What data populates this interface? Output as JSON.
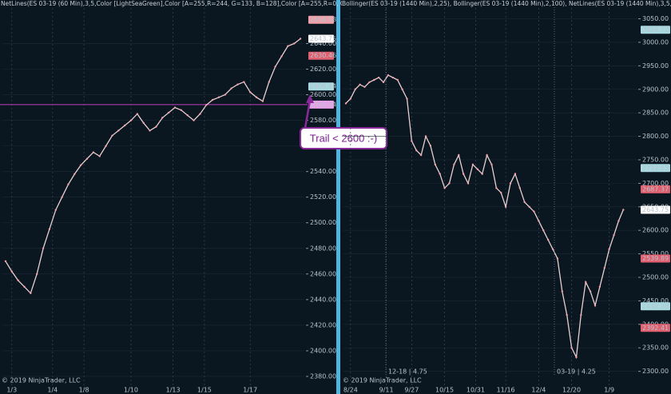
{
  "chart_data": [
    {
      "type": "line",
      "title": "NetLines(ES 03-19 (60 Min),3,5,Color [LightSeaGreen],Color [A=255,R=244, G=133, B=128],Color [A=255,R=0, G=131,",
      "values": [
        2470,
        2462,
        2455,
        2450,
        2445,
        2460,
        2480,
        2495,
        2510,
        2520,
        2530,
        2538,
        2545,
        2550,
        2555,
        2552,
        2560,
        2568,
        2572,
        2576,
        2580,
        2585,
        2578,
        2572,
        2575,
        2582,
        2586,
        2590,
        2588,
        2584,
        2580,
        2585,
        2592,
        2596,
        2598,
        2600,
        2605,
        2608,
        2610,
        2602,
        2598,
        2595,
        2610,
        2622,
        2630,
        2638,
        2640,
        2643.75
      ],
      "color": "#e8d0d0",
      "ylim": [
        2370,
        2674
      ],
      "yticks": [
        {
          "value": 2380,
          "label": "2380.00"
        },
        {
          "value": 2400,
          "label": "2400.00"
        },
        {
          "value": 2420,
          "label": "2420.00"
        },
        {
          "value": 2440,
          "label": "2440.00"
        },
        {
          "value": 2460,
          "label": "2460.00"
        },
        {
          "value": 2480,
          "label": "2480.00"
        },
        {
          "value": 2500,
          "label": "2500.00"
        },
        {
          "value": 2520,
          "label": "2520.00"
        },
        {
          "value": 2540,
          "label": "2540.00"
        },
        {
          "value": 2560,
          "label": "2560.00"
        },
        {
          "value": 2580,
          "label": "2580.00"
        },
        {
          "value": 2600,
          "label": "2600.00"
        },
        {
          "value": 2620,
          "label": "2620.00"
        },
        {
          "value": 2640,
          "label": "2640.00"
        }
      ],
      "xlim": [
        -0.5,
        47.5
      ],
      "xticks": [
        {
          "value": 1,
          "label": "1/3"
        },
        {
          "value": 7.5,
          "label": "1/4"
        },
        {
          "value": 12.5,
          "label": "1/8"
        },
        {
          "value": 20,
          "label": "1/10"
        },
        {
          "value": 26.7,
          "label": "1/13"
        },
        {
          "value": 31.7,
          "label": "1/15"
        },
        {
          "value": 39,
          "label": "1/17"
        }
      ],
      "hline": {
        "value": 2592.34,
        "color": "#c040c0"
      },
      "price_labels": [
        {
          "value": 2658.58,
          "color": "#f0a0a8"
        },
        {
          "value": 2643.75,
          "color": "#ffffff"
        },
        {
          "value": 2630.46,
          "color": "#e06070"
        },
        {
          "value": 2606.44,
          "color": "#a8d8e0"
        },
        {
          "value": 2592.34,
          "color": "#e8a0e8"
        }
      ],
      "footer": "© 2019 NinjaTrader, LLC",
      "annotation": "Trail < 2600 :-)"
    },
    {
      "type": "line",
      "title": "Bollinger(ES 03-19 (1440 Min),2,25), Bollinger(ES 03-19 (1440 Min),2,100), NetLines(ES 03-19 (1440 Min),3,5,Color",
      "values": [
        2870,
        2880,
        2900,
        2910,
        2905,
        2915,
        2920,
        2925,
        2915,
        2930,
        2925,
        2920,
        2900,
        2880,
        2790,
        2770,
        2760,
        2800,
        2780,
        2740,
        2720,
        2690,
        2700,
        2740,
        2760,
        2720,
        2700,
        2740,
        2730,
        2720,
        2760,
        2740,
        2690,
        2680,
        2650,
        2700,
        2720,
        2690,
        2660,
        2650,
        2640,
        2620,
        2600,
        2580,
        2560,
        2540,
        2470,
        2420,
        2350,
        2330,
        2420,
        2490,
        2470,
        2440,
        2480,
        2520,
        2560,
        2590,
        2620,
        2643.75
      ],
      "color": "#e8d0d0",
      "ylim": [
        2262,
        3090
      ],
      "yticks": [
        {
          "value": 2300,
          "label": "2300.00"
        },
        {
          "value": 2350,
          "label": "2350.00"
        },
        {
          "value": 2400,
          "label": "2400.00"
        },
        {
          "value": 2450,
          "label": "2450.00"
        },
        {
          "value": 2500,
          "label": "2500.00"
        },
        {
          "value": 2550,
          "label": "2550.00"
        },
        {
          "value": 2600,
          "label": "2600.00"
        },
        {
          "value": 2650,
          "label": "2650.00"
        },
        {
          "value": 2700,
          "label": "2700.00"
        },
        {
          "value": 2750,
          "label": "2750.00"
        },
        {
          "value": 2800,
          "label": "2800.00"
        },
        {
          "value": 2850,
          "label": "2850.00"
        },
        {
          "value": 2900,
          "label": "2900.00"
        },
        {
          "value": 2950,
          "label": "2950.00"
        },
        {
          "value": 3000,
          "label": "3000.00"
        },
        {
          "value": 3050,
          "label": "3050.00"
        }
      ],
      "xlim": [
        -0.5,
        62
      ],
      "xticks": [
        {
          "value": 1,
          "label": "8/24"
        },
        {
          "value": 8.6,
          "label": "9/11"
        },
        {
          "value": 14,
          "label": "9/27"
        },
        {
          "value": 21,
          "label": "10/15"
        },
        {
          "value": 27.6,
          "label": "10/31"
        },
        {
          "value": 34,
          "label": "11/16"
        },
        {
          "value": 41,
          "label": "12/4"
        },
        {
          "value": 48,
          "label": "12/20"
        },
        {
          "value": 56,
          "label": "1/9"
        }
      ],
      "price_labels": [
        {
          "value": 3026.72,
          "color": "#a8d8e0"
        },
        {
          "value": 2732.53,
          "color": "#a8d8e0"
        },
        {
          "value": 2687.37,
          "color": "#e06070"
        },
        {
          "value": 2643.75,
          "color": "#ffffff"
        },
        {
          "value": 2539.89,
          "color": "#e06070"
        },
        {
          "value": 2438.38,
          "color": "#a8d8e0"
        },
        {
          "value": 2392.41,
          "color": "#e06070"
        }
      ],
      "footer": "© 2019 NinjaTrader, LLC",
      "roll_notes": [
        "12-18 | 4.75",
        "03-19 | 4.25"
      ]
    }
  ]
}
